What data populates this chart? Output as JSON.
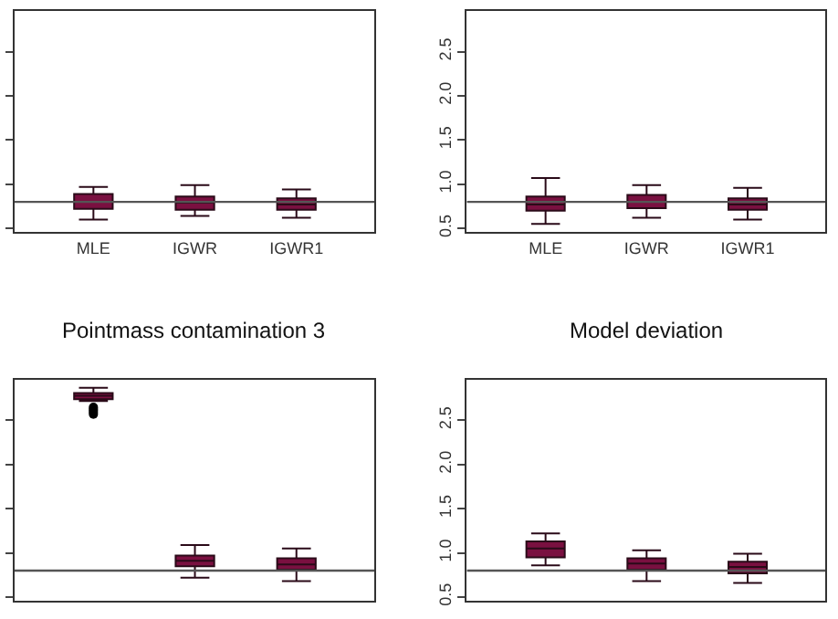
{
  "chart_data": [
    {
      "type": "box",
      "categories": [
        "MLE",
        "IGWR",
        "IGWR1"
      ],
      "color": "#7a1040",
      "ylim": [
        0.46,
        2.96
      ],
      "yticks": [
        0.5,
        1.0,
        1.5,
        2.0,
        2.5
      ],
      "tick_labels": "x",
      "ref_lines": [
        {
          "axis": "y",
          "value": 0.8,
          "color": "#555555"
        }
      ],
      "boxes": [
        {
          "low": 0.6,
          "q1": 0.72,
          "median": 0.8,
          "q3": 0.89,
          "high": 0.97
        },
        {
          "low": 0.64,
          "q1": 0.71,
          "median": 0.79,
          "q3": 0.86,
          "high": 0.99
        },
        {
          "low": 0.62,
          "q1": 0.71,
          "median": 0.77,
          "q3": 0.84,
          "high": 0.94
        }
      ]
    },
    {
      "type": "box",
      "categories": [
        "MLE",
        "IGWR",
        "IGWR1"
      ],
      "color": "#7a1040",
      "ylim": [
        0.46,
        2.96
      ],
      "yticks": [
        {
          "value": 0.5,
          "label": "0.5"
        },
        {
          "value": 1.0,
          "label": "1.0"
        },
        {
          "value": 1.5,
          "label": "1.5"
        },
        {
          "value": 2.0,
          "label": "2.0"
        },
        {
          "value": 2.5,
          "label": "2.5"
        }
      ],
      "ref_lines": [
        {
          "axis": "y",
          "value": 0.8,
          "color": "#555555"
        }
      ],
      "boxes": [
        {
          "low": 0.55,
          "q1": 0.7,
          "median": 0.77,
          "q3": 0.86,
          "high": 1.07
        },
        {
          "low": 0.62,
          "q1": 0.73,
          "median": 0.8,
          "q3": 0.88,
          "high": 0.99
        },
        {
          "low": 0.6,
          "q1": 0.71,
          "median": 0.77,
          "q3": 0.84,
          "high": 0.96
        }
      ]
    },
    {
      "type": "box",
      "title": "Pointmass contamination 3",
      "categories": [
        null,
        null,
        null
      ],
      "color": "#7a1040",
      "ylim": [
        0.46,
        2.96
      ],
      "yticks": [
        0.5,
        1.0,
        1.5,
        2.0,
        2.5
      ],
      "tick_labels": false,
      "ref_lines": [
        {
          "axis": "y",
          "value": 0.8,
          "color": "#555555"
        }
      ],
      "boxes": [
        {
          "low": 2.72,
          "q1": 2.74,
          "median": 2.78,
          "q3": 2.81,
          "high": 2.87,
          "outliers": [
            2.57,
            2.59,
            2.61,
            2.63,
            2.65
          ]
        },
        {
          "low": 0.72,
          "q1": 0.85,
          "median": 0.91,
          "q3": 0.97,
          "high": 1.09
        },
        {
          "low": 0.68,
          "q1": 0.81,
          "median": 0.87,
          "q3": 0.94,
          "high": 1.05
        }
      ]
    },
    {
      "type": "box",
      "title": "Model deviation",
      "categories": [
        null,
        null,
        null
      ],
      "color": "#7a1040",
      "ylim": [
        0.46,
        2.96
      ],
      "yticks": [
        {
          "value": 0.5,
          "label": "0.5"
        },
        {
          "value": 1.0,
          "label": "1.0"
        },
        {
          "value": 1.5,
          "label": "1.5"
        },
        {
          "value": 2.0,
          "label": "2.0"
        },
        {
          "value": 2.5,
          "label": "2.5"
        }
      ],
      "tick_labels": "y",
      "ref_lines": [
        {
          "axis": "y",
          "value": 0.8,
          "color": "#555555"
        }
      ],
      "boxes": [
        {
          "low": 0.86,
          "q1": 0.95,
          "median": 1.05,
          "q3": 1.13,
          "high": 1.22
        },
        {
          "low": 0.68,
          "q1": 0.81,
          "median": 0.88,
          "q3": 0.94,
          "high": 1.03
        },
        {
          "low": 0.66,
          "q1": 0.77,
          "median": 0.84,
          "q3": 0.9,
          "high": 0.99
        }
      ]
    }
  ]
}
